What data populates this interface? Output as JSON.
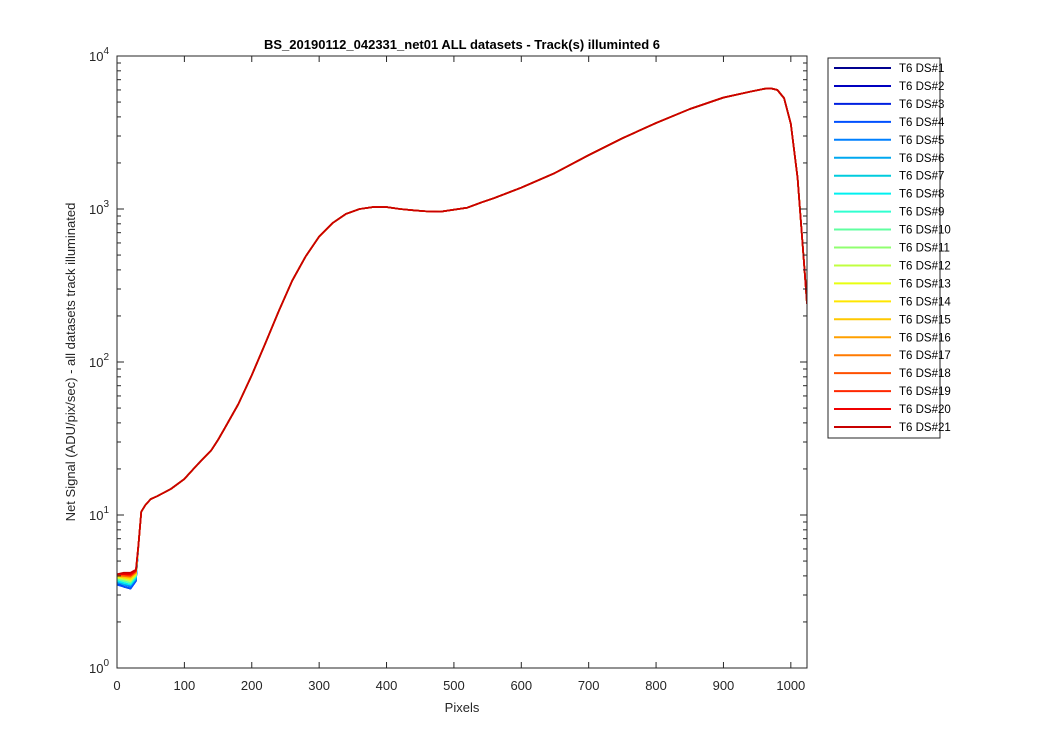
{
  "chart_data": {
    "type": "line",
    "title": "BS_20190112_042331_net01 ALL datasets - Track(s) illuminted 6",
    "xlabel": "Pixels",
    "ylabel": "Net Signal (ADU/pix/sec) - all datasets track illuminated",
    "xlim": [
      0,
      1024
    ],
    "ylim": [
      1,
      10000
    ],
    "yscale": "log",
    "xticks": [
      "0",
      "100",
      "200",
      "300",
      "400",
      "500",
      "600",
      "700",
      "800",
      "900",
      "1000"
    ],
    "yticks": [
      {
        "base": "10",
        "exp": "0"
      },
      {
        "base": "10",
        "exp": "1"
      },
      {
        "base": "10",
        "exp": "2"
      },
      {
        "base": "10",
        "exp": "3"
      },
      {
        "base": "10",
        "exp": "4"
      }
    ],
    "grid": false,
    "legend_position": "outside-right",
    "x": [
      0,
      10,
      20,
      28,
      32,
      36,
      42,
      50,
      60,
      80,
      100,
      120,
      140,
      150,
      160,
      180,
      200,
      220,
      240,
      260,
      280,
      300,
      320,
      340,
      360,
      380,
      400,
      420,
      440,
      460,
      480,
      500,
      520,
      540,
      560,
      600,
      650,
      700,
      750,
      800,
      850,
      900,
      940,
      960,
      970,
      980,
      990,
      1000,
      1010,
      1020,
      1024
    ],
    "common_values": [
      4.1,
      4.2,
      4.2,
      4.4,
      6.5,
      10.5,
      11.6,
      12.7,
      13.3,
      14.8,
      17.2,
      21.5,
      26.5,
      31,
      37,
      53,
      82,
      132,
      215,
      340,
      490,
      660,
      810,
      930,
      1000,
      1030,
      1030,
      1000,
      980,
      965,
      960,
      990,
      1020,
      1100,
      1180,
      1380,
      1720,
      2250,
      2900,
      3650,
      4500,
      5350,
      5850,
      6100,
      6150,
      6000,
      5300,
      3600,
      1600,
      420,
      240
    ],
    "series": [
      {
        "name": "T6 DS#1",
        "color": "#00008F",
        "start": [
          3.6,
          3.4,
          3.3,
          3.7
        ]
      },
      {
        "name": "T6 DS#2",
        "color": "#0000C0",
        "start": [
          3.6,
          3.4,
          3.3,
          3.7
        ]
      },
      {
        "name": "T6 DS#3",
        "color": "#0020E0",
        "start": [
          3.6,
          3.5,
          3.4,
          3.8
        ]
      },
      {
        "name": "T6 DS#4",
        "color": "#0050FF",
        "start": [
          3.5,
          3.4,
          3.3,
          3.7
        ]
      },
      {
        "name": "T6 DS#5",
        "color": "#0080FF",
        "start": [
          3.6,
          3.5,
          3.4,
          3.8
        ]
      },
      {
        "name": "T6 DS#6",
        "color": "#00A8F0",
        "start": [
          3.7,
          3.5,
          3.5,
          3.8
        ]
      },
      {
        "name": "T6 DS#7",
        "color": "#00CCDD",
        "start": [
          3.7,
          3.6,
          3.5,
          3.9
        ]
      },
      {
        "name": "T6 DS#8",
        "color": "#00F0F0",
        "start": [
          3.7,
          3.6,
          3.5,
          3.9
        ]
      },
      {
        "name": "T6 DS#9",
        "color": "#30FFD0",
        "start": [
          3.8,
          3.7,
          3.6,
          4.0
        ]
      },
      {
        "name": "T6 DS#10",
        "color": "#60FFA0",
        "start": [
          3.8,
          3.7,
          3.6,
          4.0
        ]
      },
      {
        "name": "T6 DS#11",
        "color": "#90FF70",
        "start": [
          3.9,
          3.8,
          3.7,
          4.0
        ]
      },
      {
        "name": "T6 DS#12",
        "color": "#C0FF40",
        "start": [
          3.9,
          3.8,
          3.7,
          4.1
        ]
      },
      {
        "name": "T6 DS#13",
        "color": "#E8FF10",
        "start": [
          3.9,
          3.9,
          3.8,
          4.1
        ]
      },
      {
        "name": "T6 DS#14",
        "color": "#FFE600",
        "start": [
          4.0,
          3.9,
          3.8,
          4.1
        ]
      },
      {
        "name": "T6 DS#15",
        "color": "#FFC800",
        "start": [
          4.0,
          3.9,
          3.9,
          4.2
        ]
      },
      {
        "name": "T6 DS#16",
        "color": "#FFA000",
        "start": [
          4.0,
          4.0,
          3.9,
          4.2
        ]
      },
      {
        "name": "T6 DS#17",
        "color": "#FF7A00",
        "start": [
          4.0,
          4.0,
          4.0,
          4.2
        ]
      },
      {
        "name": "T6 DS#18",
        "color": "#FF5000",
        "start": [
          4.1,
          4.0,
          4.0,
          4.3
        ]
      },
      {
        "name": "T6 DS#19",
        "color": "#FF2800",
        "start": [
          4.1,
          4.1,
          4.0,
          4.3
        ]
      },
      {
        "name": "T6 DS#20",
        "color": "#F00000",
        "start": [
          4.1,
          4.1,
          4.1,
          4.3
        ]
      },
      {
        "name": "T6 DS#21",
        "color": "#C80000",
        "start": [
          4.1,
          4.2,
          4.2,
          4.4
        ]
      }
    ]
  }
}
